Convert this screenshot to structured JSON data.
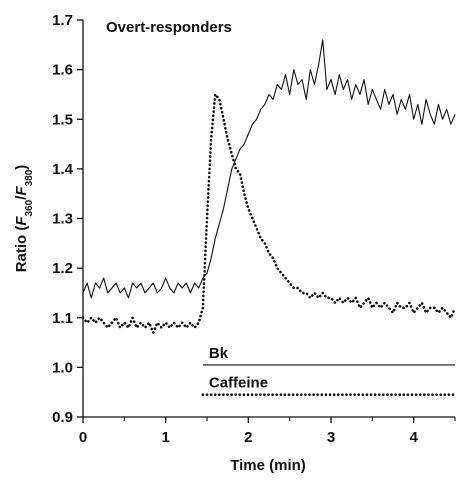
{
  "chart_data": {
    "type": "line",
    "title": "Overt-responders",
    "xlabel": "Time (min)",
    "ylabel": [
      {
        "text": "Ratio ("
      },
      {
        "text": "F",
        "style": "italic"
      },
      {
        "text": "360",
        "style": "sub"
      },
      {
        "text": "/"
      },
      {
        "text": "F",
        "style": "italic"
      },
      {
        "text": "380",
        "style": "sub"
      },
      {
        "text": ")"
      }
    ],
    "x": [
      0,
      0.05,
      0.1,
      0.15,
      0.2,
      0.25,
      0.3,
      0.35,
      0.4,
      0.45,
      0.5,
      0.55,
      0.6,
      0.65,
      0.7,
      0.75,
      0.8,
      0.85,
      0.9,
      0.95,
      1.0,
      1.05,
      1.1,
      1.15,
      1.2,
      1.25,
      1.3,
      1.35,
      1.4,
      1.45,
      1.5,
      1.55,
      1.6,
      1.65,
      1.7,
      1.75,
      1.8,
      1.85,
      1.9,
      1.95,
      2.0,
      2.05,
      2.1,
      2.15,
      2.2,
      2.25,
      2.3,
      2.35,
      2.4,
      2.45,
      2.5,
      2.55,
      2.6,
      2.65,
      2.7,
      2.75,
      2.8,
      2.85,
      2.9,
      2.95,
      3.0,
      3.05,
      3.1,
      3.15,
      3.2,
      3.25,
      3.3,
      3.35,
      3.4,
      3.45,
      3.5,
      3.55,
      3.6,
      3.65,
      3.7,
      3.75,
      3.8,
      3.85,
      3.9,
      3.95,
      4.0,
      4.05,
      4.1,
      4.15,
      4.2,
      4.25,
      4.3,
      4.35,
      4.4,
      4.45,
      4.5
    ],
    "series": [
      {
        "color": "#111111",
        "style": "solid",
        "values": [
          1.15,
          1.17,
          1.14,
          1.17,
          1.16,
          1.18,
          1.15,
          1.16,
          1.17,
          1.15,
          1.16,
          1.14,
          1.17,
          1.16,
          1.17,
          1.15,
          1.16,
          1.17,
          1.15,
          1.16,
          1.18,
          1.16,
          1.15,
          1.17,
          1.16,
          1.17,
          1.15,
          1.17,
          1.16,
          1.18,
          1.19,
          1.22,
          1.26,
          1.29,
          1.32,
          1.36,
          1.4,
          1.42,
          1.44,
          1.45,
          1.47,
          1.49,
          1.5,
          1.52,
          1.53,
          1.55,
          1.54,
          1.57,
          1.56,
          1.59,
          1.55,
          1.6,
          1.57,
          1.58,
          1.54,
          1.6,
          1.57,
          1.61,
          1.66,
          1.56,
          1.58,
          1.55,
          1.59,
          1.56,
          1.58,
          1.54,
          1.57,
          1.55,
          1.58,
          1.53,
          1.56,
          1.54,
          1.52,
          1.56,
          1.53,
          1.55,
          1.51,
          1.54,
          1.52,
          1.55,
          1.5,
          1.53,
          1.49,
          1.54,
          1.51,
          1.49,
          1.53,
          1.5,
          1.52,
          1.49,
          1.51
        ]
      },
      {
        "color": "#111111",
        "style": "dotted",
        "values": [
          1.1,
          1.09,
          1.1,
          1.09,
          1.1,
          1.09,
          1.08,
          1.09,
          1.1,
          1.08,
          1.09,
          1.08,
          1.1,
          1.08,
          1.09,
          1.08,
          1.09,
          1.07,
          1.09,
          1.08,
          1.09,
          1.08,
          1.09,
          1.08,
          1.09,
          1.08,
          1.09,
          1.08,
          1.09,
          1.12,
          1.3,
          1.46,
          1.55,
          1.54,
          1.5,
          1.46,
          1.43,
          1.4,
          1.39,
          1.35,
          1.32,
          1.3,
          1.28,
          1.26,
          1.25,
          1.23,
          1.22,
          1.2,
          1.19,
          1.18,
          1.17,
          1.16,
          1.16,
          1.15,
          1.15,
          1.14,
          1.15,
          1.14,
          1.15,
          1.14,
          1.14,
          1.13,
          1.14,
          1.13,
          1.14,
          1.13,
          1.14,
          1.12,
          1.13,
          1.14,
          1.12,
          1.13,
          1.12,
          1.13,
          1.12,
          1.11,
          1.13,
          1.12,
          1.12,
          1.13,
          1.11,
          1.12,
          1.13,
          1.11,
          1.12,
          1.12,
          1.11,
          1.12,
          1.11,
          1.1,
          1.12
        ]
      }
    ],
    "stimuli": [
      {
        "label": "Bk",
        "start": 1.45,
        "end": 4.5,
        "y": 1.005,
        "style": "solid"
      },
      {
        "label": "Caffeine",
        "start": 1.45,
        "end": 4.5,
        "y": 0.945,
        "style": "dotted"
      }
    ],
    "xlim": [
      0,
      4.5
    ],
    "xticks": [
      0,
      1,
      2,
      3,
      4
    ],
    "xminorticks": [
      0.5,
      1.5,
      2.5,
      3.5,
      4.5
    ],
    "ylim": [
      0.9,
      1.7
    ],
    "yticks": [
      {
        "value": 0.9,
        "label": "0.9"
      },
      {
        "value": 1.0,
        "label": "1.0"
      },
      {
        "value": 1.1,
        "label": "1.1"
      },
      {
        "value": 1.2,
        "label": "1.2"
      },
      {
        "value": 1.3,
        "label": "1.3"
      },
      {
        "value": 1.4,
        "label": "1.4"
      },
      {
        "value": 1.5,
        "label": "1.5"
      },
      {
        "value": 1.6,
        "label": "1.6"
      },
      {
        "value": 1.7,
        "label": "1.7"
      }
    ],
    "grid": false
  }
}
